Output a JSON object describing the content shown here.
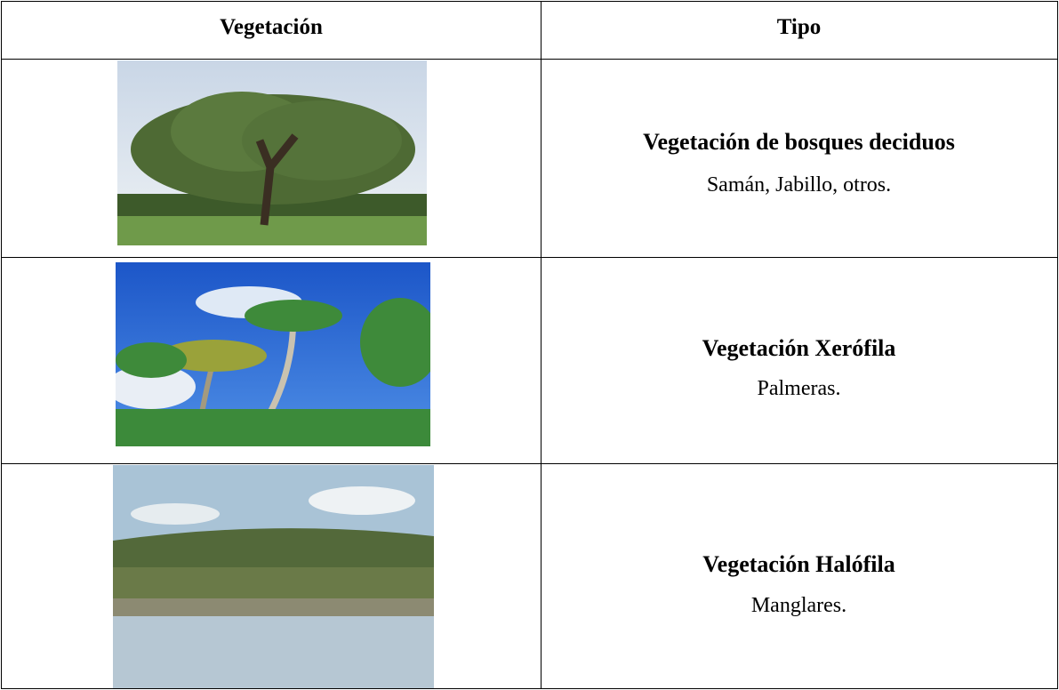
{
  "table": {
    "header": [
      "Vegetación",
      "Tipo"
    ],
    "rows": [
      {
        "title": "Vegetación de bosques deciduos",
        "examples": "Samán, Jabillo, otros."
      },
      {
        "title": "Vegetación Xerófila",
        "examples": "Palmeras."
      },
      {
        "title": "Vegetación Halófila",
        "examples": "Manglares."
      }
    ]
  }
}
